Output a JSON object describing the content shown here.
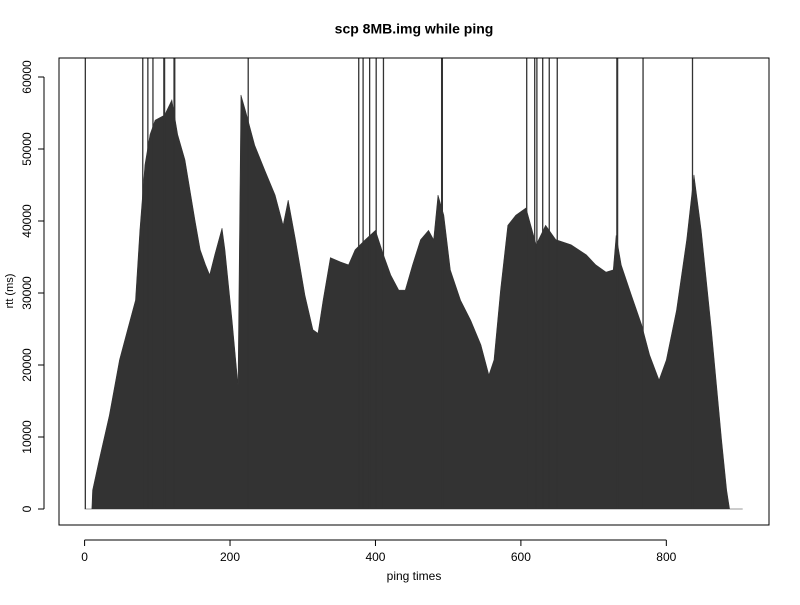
{
  "chart_data": {
    "type": "h",
    "title": "scp 8MB.img while ping",
    "xlabel": "ping times",
    "ylabel": "rtt (ms)",
    "color": "#333333",
    "x": [
      0,
      10,
      11,
      20,
      34,
      48,
      62,
      70,
      76,
      83,
      90,
      97,
      110,
      120,
      128,
      138,
      152,
      159,
      166,
      172,
      179,
      189,
      193,
      203,
      211,
      215,
      221,
      234,
      248,
      262,
      273,
      280,
      290,
      303,
      314,
      321,
      328,
      338,
      352,
      363,
      372,
      386,
      400,
      411,
      421,
      432,
      441,
      451,
      462,
      473,
      480,
      486,
      494,
      503,
      517,
      531,
      545,
      556,
      563,
      572,
      582,
      593,
      607,
      621,
      634,
      648,
      669,
      690,
      703,
      717,
      727,
      731,
      738,
      752,
      766,
      777,
      790,
      800,
      814,
      828,
      838,
      848,
      862,
      876,
      883,
      887,
      905
    ],
    "values": [
      0,
      0,
      2600,
      6800,
      13000,
      20700,
      26000,
      29000,
      38700,
      47800,
      52000,
      54000,
      54700,
      56800,
      52000,
      48500,
      40000,
      36000,
      34000,
      32500,
      35300,
      39000,
      36000,
      26000,
      17200,
      57500,
      55400,
      50500,
      47000,
      43600,
      39400,
      42900,
      37400,
      29700,
      24900,
      24400,
      29000,
      34900,
      34300,
      33900,
      36000,
      37400,
      38700,
      35300,
      32500,
      30400,
      30400,
      33900,
      37400,
      38700,
      37400,
      43600,
      40800,
      33200,
      29000,
      26200,
      22800,
      18600,
      20700,
      30400,
      39400,
      40800,
      41800,
      36700,
      39400,
      37400,
      36700,
      35300,
      33900,
      32900,
      33200,
      38000,
      33900,
      29700,
      25600,
      21400,
      17900,
      20700,
      27600,
      37400,
      46400,
      38700,
      24900,
      9600,
      2600,
      0,
      0
    ],
    "spikes": {
      "x": [
        1,
        80,
        87,
        94,
        109,
        110,
        123,
        124,
        225,
        377,
        383,
        392,
        401,
        411,
        491,
        492,
        608,
        619,
        622,
        630,
        639,
        650,
        732,
        733,
        768,
        836
      ],
      "values": [
        65000,
        65000,
        65000,
        65000,
        65000,
        65000,
        65000,
        65000,
        65000,
        65000,
        65000,
        65000,
        65000,
        65000,
        65000,
        65000,
        65000,
        65000,
        65000,
        65000,
        65000,
        65000,
        65000,
        65000,
        65000,
        65000
      ]
    },
    "xlim": [
      -35.2,
      941.2
    ],
    "ylim": [
      -2222,
      62639
    ],
    "xticks": [
      0,
      200,
      400,
      600,
      800
    ],
    "yticks": [
      0,
      10000,
      20000,
      30000,
      40000,
      50000,
      60000
    ]
  }
}
